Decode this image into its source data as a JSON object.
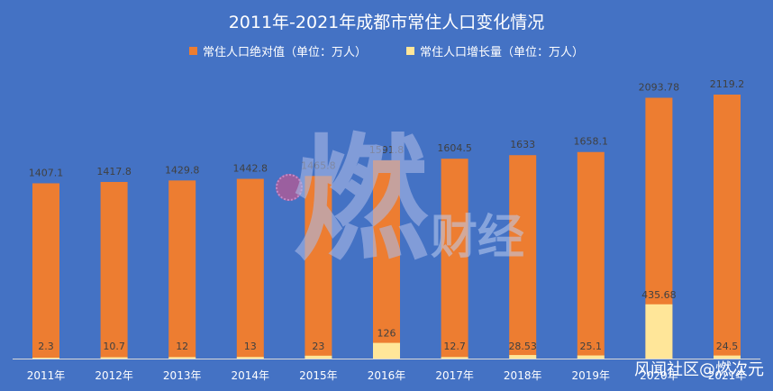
{
  "chart_data": {
    "type": "bar",
    "title": "2011年-2021年成都市常住人口变化情况",
    "categories": [
      "2011年",
      "2012年",
      "2013年",
      "2014年",
      "2015年",
      "2016年",
      "2017年",
      "2018年",
      "2019年",
      "2020年",
      "2021年"
    ],
    "series": [
      {
        "name": "常住人口绝对值（单位：万人）",
        "color": "#ED7D31",
        "values": [
          1407.1,
          1417.8,
          1429.8,
          1442.8,
          1465.8,
          1591.8,
          1604.5,
          1633,
          1658.1,
          2093.78,
          2119.2
        ],
        "labels": [
          "1407.1",
          "1417.8",
          "1429.8",
          "1442.8",
          "1465.8",
          "1591.8",
          "1604.5",
          "1633",
          "1658.1",
          "2093.78",
          "2119.2"
        ]
      },
      {
        "name": "常住人口增长量（单位：万人）",
        "color": "#FFE699",
        "values": [
          2.3,
          10.7,
          12,
          13,
          23,
          126,
          12.7,
          28.53,
          25.1,
          435.68,
          24.5
        ],
        "labels": [
          "2.3",
          "10.7",
          "12",
          "13",
          "23",
          "126",
          "12.7",
          "28.53",
          "25.1",
          "435.68",
          "24.5"
        ]
      }
    ],
    "ylim": [
      0,
      2300
    ],
    "grid": false,
    "legend_position": "top"
  },
  "watermark": {
    "glyph": "燃",
    "text": "财经"
  },
  "credit": "风闻社区@燃次元"
}
